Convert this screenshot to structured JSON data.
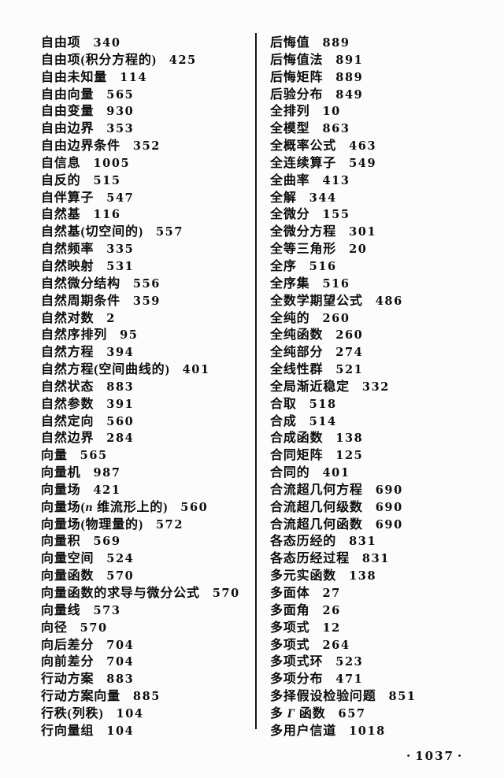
{
  "colors": {
    "ink": "#0c0c0c",
    "paper": "#fcfcfc"
  },
  "footer": {
    "left_dot": "·",
    "page_number": "1037",
    "right_dot": "·"
  },
  "columns": {
    "left": [
      {
        "term": "自由项",
        "page": "340"
      },
      {
        "term": "自由项(积分方程的)",
        "page": "425"
      },
      {
        "term": "自由未知量",
        "page": "114"
      },
      {
        "term": "自由向量",
        "page": "565"
      },
      {
        "term": "自由变量",
        "page": "930"
      },
      {
        "term": "自由边界",
        "page": "353"
      },
      {
        "term": "自由边界条件",
        "page": "352"
      },
      {
        "term": "自信息",
        "page": "1005"
      },
      {
        "term": "自反的",
        "page": "515"
      },
      {
        "term": "自伴算子",
        "page": "547"
      },
      {
        "term": "自然基",
        "page": "116"
      },
      {
        "term": "自然基(切空间的)",
        "page": "557"
      },
      {
        "term": "自然频率",
        "page": "335"
      },
      {
        "term": "自然映射",
        "page": "531"
      },
      {
        "term": "自然微分结构",
        "page": "556"
      },
      {
        "term": "自然周期条件",
        "page": "359"
      },
      {
        "term": "自然对数",
        "page": "2"
      },
      {
        "term": "自然序排列",
        "page": "95"
      },
      {
        "term": "自然方程",
        "page": "394"
      },
      {
        "term": "自然方程(空间曲线的)",
        "page": "401"
      },
      {
        "term": "自然状态",
        "page": "883"
      },
      {
        "term": "自然参数",
        "page": "391"
      },
      {
        "term": "自然定向",
        "page": "560"
      },
      {
        "term": "自然边界",
        "page": "284"
      },
      {
        "term": "向量",
        "page": "565"
      },
      {
        "term": "向量机",
        "page": "987"
      },
      {
        "term": "向量场",
        "page": "421"
      },
      {
        "term": "向量场(n 维流形上的)",
        "page": "560"
      },
      {
        "term": "向量场(物理量的)",
        "page": "572"
      },
      {
        "term": "向量积",
        "page": "569"
      },
      {
        "term": "向量空间",
        "page": "524"
      },
      {
        "term": "向量函数",
        "page": "570"
      },
      {
        "term": "向量函数的求导与微分公式",
        "page": "570"
      },
      {
        "term": "向量线",
        "page": "573"
      },
      {
        "term": "向径",
        "page": "570"
      },
      {
        "term": "向后差分",
        "page": "704"
      },
      {
        "term": "向前差分",
        "page": "704"
      },
      {
        "term": "行动方案",
        "page": "883"
      },
      {
        "term": "行动方案向量",
        "page": "885"
      },
      {
        "term": "行秩(列秩)",
        "page": "104"
      },
      {
        "term": "行向量组",
        "page": "104"
      }
    ],
    "right": [
      {
        "term": "后悔值",
        "page": "889"
      },
      {
        "term": "后悔值法",
        "page": "891"
      },
      {
        "term": "后悔矩阵",
        "page": "889"
      },
      {
        "term": "后验分布",
        "page": "849"
      },
      {
        "term": "全排列",
        "page": "10"
      },
      {
        "term": "全模型",
        "page": "863"
      },
      {
        "term": "全概率公式",
        "page": "463"
      },
      {
        "term": "全连续算子",
        "page": "549"
      },
      {
        "term": "全曲率",
        "page": "413"
      },
      {
        "term": "全解",
        "page": "344"
      },
      {
        "term": "全微分",
        "page": "155"
      },
      {
        "term": "全微分方程",
        "page": "301"
      },
      {
        "term": "全等三角形",
        "page": "20"
      },
      {
        "term": "全序",
        "page": "516"
      },
      {
        "term": "全序集",
        "page": "516"
      },
      {
        "term": "全数学期望公式",
        "page": "486"
      },
      {
        "term": "全纯的",
        "page": "260"
      },
      {
        "term": "全纯函数",
        "page": "260"
      },
      {
        "term": "全纯部分",
        "page": "274"
      },
      {
        "term": "全线性群",
        "page": "521"
      },
      {
        "term": "全局渐近稳定",
        "page": "332"
      },
      {
        "term": "合取",
        "page": "518"
      },
      {
        "term": "合成",
        "page": "514"
      },
      {
        "term": "合成函数",
        "page": "138"
      },
      {
        "term": "合同矩阵",
        "page": "125"
      },
      {
        "term": "合同的",
        "page": "401"
      },
      {
        "term": "合流超几何方程",
        "page": "690"
      },
      {
        "term": "合流超几何级数",
        "page": "690"
      },
      {
        "term": "合流超几何函数",
        "page": "690"
      },
      {
        "term": "各态历经的",
        "page": "831"
      },
      {
        "term": "各态历经过程",
        "page": "831"
      },
      {
        "term": "多元实函数",
        "page": "138"
      },
      {
        "term": "多面体",
        "page": "27"
      },
      {
        "term": "多面角",
        "page": "26"
      },
      {
        "term": "多项式",
        "page": "12"
      },
      {
        "term": "多项式",
        "page": "264"
      },
      {
        "term": "多项式环",
        "page": "523"
      },
      {
        "term": "多项分布",
        "page": "471"
      },
      {
        "term": "多择假设检验问题",
        "page": "851"
      },
      {
        "term": "多 Γ 函数",
        "page": "657"
      },
      {
        "term": "多用户信道",
        "page": "1018"
      }
    ]
  }
}
